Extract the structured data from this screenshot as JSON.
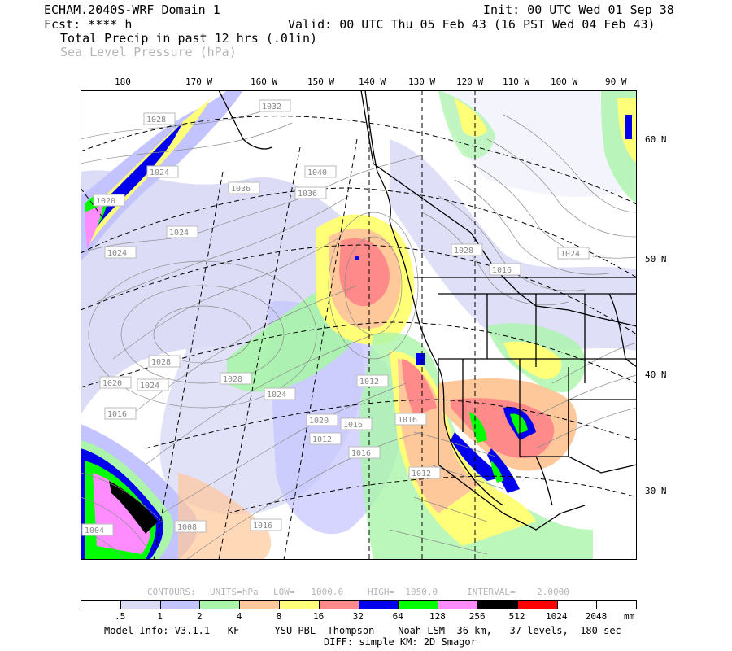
{
  "header": {
    "model": "ECHAM.2040S-WRF Domain 1",
    "init": "Init: 00 UTC Wed 01 Sep 38",
    "fcst": "Fcst: **** h",
    "valid": "Valid: 00 UTC Thu 05 Feb 43 (16 PST Wed 04 Feb 43)",
    "field1": "Total Precip in past 12 hrs (.01in)",
    "field2": "Sea Level Pressure (hPa)"
  },
  "axes": {
    "top_labels": [
      "180",
      "170 W",
      "160 W",
      "150 W",
      "140 W",
      "130 W",
      "120 W",
      "110 W",
      "100 W",
      "90 W"
    ],
    "right_labels": [
      "60 N",
      "50 N",
      "40 N",
      "30 N"
    ]
  },
  "isobar_labels": [
    "1032",
    "1028",
    "1024",
    "1020",
    "1040",
    "1036",
    "1036",
    "1024",
    "1028",
    "1024",
    "1028",
    "1024",
    "1020",
    "1016",
    "1012",
    "1028",
    "1016",
    "1024",
    "1020",
    "1016",
    "1012",
    "1016",
    "1012",
    "1004",
    "1008",
    "1016",
    "1016",
    "1024"
  ],
  "contours_line": {
    "contours": "CONTOURS:",
    "units": "UNITS=hPa",
    "low": "LOW=   1000.0",
    "high": "HIGH=  1050.0",
    "interval": "INTERVAL=    2.0000"
  },
  "colorbar": {
    "colors": [
      "#ffffff",
      "#dcdcf6",
      "#c3c3ff",
      "#aaf5aa",
      "#ffc89a",
      "#ffff78",
      "#ff8a8a",
      "#0000ee",
      "#00ff00",
      "#ff8cff",
      "#000000",
      "#ff0000",
      "#ffffff",
      "#ffffff"
    ],
    "ticks": [
      ".5",
      "1",
      "2",
      "4",
      "8",
      "16",
      "32",
      "64",
      "128",
      "256",
      "512",
      "1024",
      "2048"
    ],
    "units": "mm"
  },
  "footer": {
    "line1": "Model Info: V3.1.1   KF      YSU PBL  Thompson    Noah LSM  36 km,   37 levels,  180 sec",
    "line2": "DIFF: simple KM: 2D Smagor"
  }
}
